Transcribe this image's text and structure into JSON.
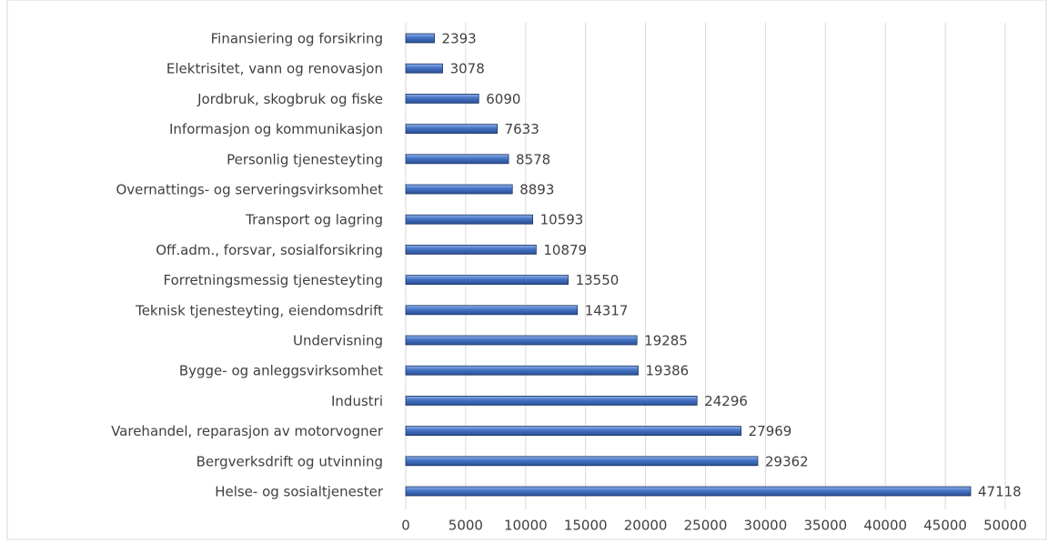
{
  "chart_data": {
    "type": "bar",
    "orientation": "horizontal",
    "categories": [
      "Finansiering og forsikring",
      "Elektrisitet, vann og renovasjon",
      "Jordbruk, skogbruk og fiske",
      "Informasjon og kommunikasjon",
      "Personlig tjenesteyting",
      "Overnattings- og serveringsvirksomhet",
      "Transport og lagring",
      "Off.adm., forsvar, sosialforsikring",
      "Forretningsmessig tjenesteyting",
      "Teknisk tjenesteyting, eiendomsdrift",
      "Undervisning",
      "Bygge- og anleggsvirksomhet",
      "Industri",
      "Varehandel, reparasjon av motorvogner",
      "Bergverksdrift og utvinning",
      "Helse- og sosialtjenester"
    ],
    "values": [
      2393,
      3078,
      6090,
      7633,
      8578,
      8893,
      10593,
      10879,
      13550,
      14317,
      19285,
      19386,
      24296,
      27969,
      29362,
      47118
    ],
    "color": "#4472c4",
    "xlim": [
      0,
      50000
    ],
    "xticks": [
      0,
      5000,
      10000,
      15000,
      20000,
      25000,
      30000,
      35000,
      40000,
      45000,
      50000
    ],
    "grid": true
  }
}
